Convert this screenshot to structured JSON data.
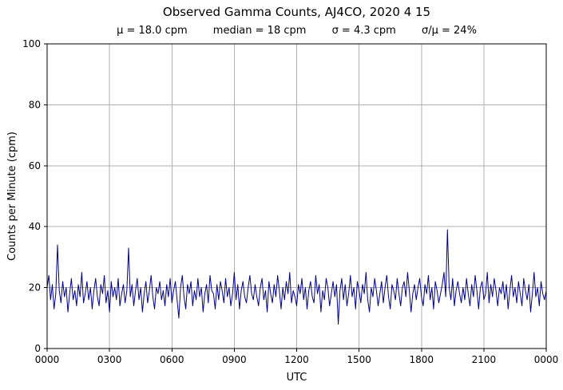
{
  "title": "Observed Gamma Counts, AJ4CO, 2020 4 15",
  "stats": {
    "mu_label": "μ = 18.0 cpm",
    "median_label": "median = 18 cpm",
    "sigma_label": "σ = 4.3 cpm",
    "ratio_label": "σ/μ = 24%"
  },
  "chart_data": {
    "type": "line",
    "title": "Observed Gamma Counts, AJ4CO, 2020 4 15",
    "xlabel": "UTC",
    "ylabel": "Counts per Minute (cpm)",
    "xlim": [
      0,
      1440
    ],
    "ylim": [
      0,
      100
    ],
    "grid": true,
    "line_color": "#00008b",
    "grid_color": "#b0b0b0",
    "x_tick_positions": [
      0,
      180,
      360,
      540,
      720,
      900,
      1080,
      1260,
      1440
    ],
    "x_tick_labels": [
      "0000",
      "0300",
      "0600",
      "0900",
      "1200",
      "1500",
      "1800",
      "2100",
      "0000"
    ],
    "y_ticks": [
      0,
      20,
      40,
      60,
      80,
      100
    ],
    "x_step_minutes": 5,
    "values": [
      20,
      24,
      16,
      21,
      13,
      18,
      34,
      19,
      15,
      22,
      17,
      20,
      12,
      18,
      23,
      16,
      19,
      14,
      21,
      17,
      25,
      15,
      18,
      22,
      16,
      20,
      13,
      19,
      23,
      17,
      14,
      21,
      18,
      24,
      15,
      19,
      12,
      22,
      17,
      20,
      16,
      23,
      14,
      18,
      21,
      15,
      19,
      33,
      17,
      21,
      14,
      19,
      23,
      16,
      20,
      12,
      18,
      22,
      15,
      19,
      24,
      17,
      13,
      20,
      18,
      22,
      16,
      19,
      14,
      21,
      17,
      23,
      15,
      19,
      22,
      16,
      10,
      20,
      24,
      17,
      13,
      21,
      18,
      22,
      14,
      19,
      16,
      23,
      17,
      20,
      12,
      18,
      21,
      15,
      24,
      19,
      18,
      13,
      21,
      16,
      22,
      19,
      15,
      23,
      17,
      20,
      14,
      18,
      25,
      16,
      21,
      13,
      19,
      22,
      17,
      15,
      20,
      24,
      18,
      16,
      21,
      17,
      14,
      20,
      23,
      16,
      19,
      12,
      22,
      18,
      15,
      21,
      17,
      24,
      19,
      13,
      20,
      16,
      22,
      18,
      25,
      15,
      19,
      17,
      14,
      21,
      18,
      23,
      16,
      20,
      13,
      19,
      22,
      17,
      15,
      24,
      18,
      21,
      12,
      19,
      16,
      23,
      20,
      14,
      18,
      22,
      17,
      21,
      8,
      19,
      23,
      16,
      21,
      14,
      18,
      24,
      17,
      20,
      13,
      22,
      19,
      15,
      21,
      18,
      25,
      16,
      12,
      20,
      17,
      23,
      19,
      14,
      18,
      22,
      15,
      20,
      24,
      17,
      13,
      21,
      19,
      16,
      23,
      18,
      14,
      20,
      22,
      17,
      25,
      19,
      12,
      18,
      21,
      16,
      20,
      23,
      17,
      14,
      21,
      18,
      24,
      16,
      20,
      13,
      22,
      19,
      15,
      18,
      21,
      25,
      17,
      39,
      20,
      16,
      23,
      14,
      19,
      22,
      18,
      15,
      20,
      16,
      23,
      18,
      14,
      21,
      17,
      24,
      19,
      13,
      20,
      22,
      16,
      18,
      25,
      15,
      21,
      17,
      23,
      19,
      14,
      20,
      18,
      22,
      16,
      21,
      13,
      19,
      24,
      17,
      20,
      15,
      22,
      18,
      14,
      23,
      19,
      16,
      21,
      12,
      18,
      25,
      17,
      20,
      14,
      22,
      18,
      16,
      19
    ]
  }
}
